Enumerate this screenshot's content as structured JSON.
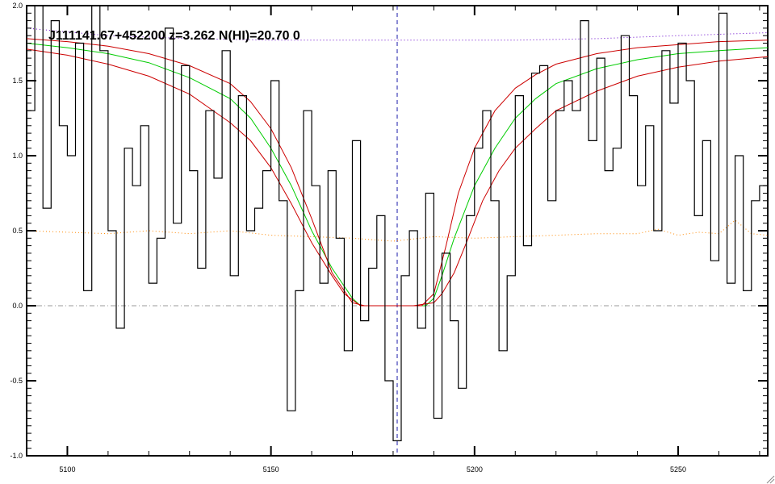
{
  "chart_data": {
    "type": "line",
    "title": "J111141.67+452200 z=3.262 N(HI)=20.70 0",
    "xlabel": "",
    "ylabel": "",
    "xlim": [
      5090,
      5272
    ],
    "ylim": [
      -1.0,
      2.0
    ],
    "x_ticks": [
      5100,
      5150,
      5200,
      5250
    ],
    "y_ticks": [
      -1.0,
      -0.5,
      0.0,
      0.5,
      1.0,
      1.5,
      2.0
    ],
    "y_tick_labels": [
      "-1.0",
      "-0.5",
      "0.0",
      "0.5",
      "1.0",
      "1.5",
      "2.0"
    ],
    "grid": false,
    "center_x": 5181,
    "zero_level": 0.0,
    "series": [
      {
        "style": "step",
        "color": "#000000",
        "x": [
          5090,
          5092,
          5094,
          5096,
          5098,
          5100,
          5102,
          5104,
          5106,
          5108,
          5110,
          5112,
          5114,
          5116,
          5118,
          5120,
          5122,
          5124,
          5126,
          5128,
          5130,
          5132,
          5134,
          5136,
          5138,
          5140,
          5142,
          5144,
          5146,
          5148,
          5150,
          5152,
          5154,
          5156,
          5158,
          5160,
          5162,
          5164,
          5166,
          5168,
          5170,
          5172,
          5174,
          5176,
          5178,
          5180,
          5182,
          5184,
          5186,
          5188,
          5190,
          5192,
          5194,
          5196,
          5198,
          5200,
          5202,
          5204,
          5206,
          5208,
          5210,
          5212,
          5214,
          5216,
          5218,
          5220,
          5222,
          5224,
          5226,
          5228,
          5230,
          5232,
          5234,
          5236,
          5238,
          5240,
          5242,
          5244,
          5246,
          5248,
          5250,
          5252,
          5254,
          5256,
          5258,
          5260,
          5262,
          5264,
          5266,
          5268,
          5270
        ],
        "values": [
          1.3,
          2.0,
          0.65,
          1.9,
          1.2,
          1.0,
          1.75,
          0.1,
          2.1,
          1.7,
          0.5,
          -0.15,
          1.05,
          0.8,
          1.2,
          0.15,
          0.45,
          1.85,
          0.55,
          1.6,
          0.9,
          0.25,
          1.3,
          0.85,
          1.7,
          0.2,
          1.4,
          0.5,
          0.65,
          0.9,
          1.5,
          0.7,
          -0.7,
          0.1,
          1.3,
          0.8,
          0.15,
          0.9,
          0.45,
          -0.3,
          1.1,
          -0.1,
          0.25,
          0.6,
          -0.5,
          -0.9,
          0.2,
          0.5,
          -0.15,
          0.75,
          -0.75,
          0.35,
          -0.1,
          -0.55,
          0.6,
          1.05,
          1.3,
          0.7,
          -0.3,
          0.2,
          1.4,
          0.4,
          1.55,
          1.6,
          0.7,
          1.3,
          1.5,
          1.3,
          1.9,
          1.1,
          1.65,
          0.9,
          1.05,
          1.8,
          1.4,
          0.8,
          1.2,
          0.5,
          1.7,
          1.35,
          1.75,
          1.5,
          0.6,
          1.1,
          0.3,
          1.95,
          0.15,
          1.0,
          0.1,
          0.7,
          0.8
        ]
      },
      {
        "style": "line",
        "color": "#00cc00",
        "x": [
          5090,
          5100,
          5110,
          5120,
          5130,
          5140,
          5145,
          5150,
          5155,
          5160,
          5165,
          5170,
          5172,
          5175,
          5180,
          5185,
          5188,
          5190,
          5192,
          5195,
          5200,
          5205,
          5210,
          5215,
          5220,
          5230,
          5240,
          5250,
          5260,
          5272
        ],
        "values": [
          1.75,
          1.72,
          1.68,
          1.62,
          1.52,
          1.38,
          1.25,
          1.05,
          0.8,
          0.5,
          0.25,
          0.05,
          0.0,
          0.0,
          0.0,
          0.0,
          0.0,
          0.05,
          0.2,
          0.45,
          0.8,
          1.05,
          1.25,
          1.38,
          1.48,
          1.58,
          1.64,
          1.68,
          1.7,
          1.72
        ]
      },
      {
        "style": "line",
        "color": "#cc0000",
        "x": [
          5090,
          5100,
          5110,
          5120,
          5130,
          5140,
          5145,
          5150,
          5155,
          5160,
          5165,
          5170,
          5173,
          5175,
          5180,
          5185,
          5187,
          5190,
          5193,
          5196,
          5200,
          5205,
          5210,
          5215,
          5220,
          5230,
          5240,
          5250,
          5260,
          5272
        ],
        "values": [
          1.78,
          1.76,
          1.73,
          1.68,
          1.6,
          1.48,
          1.36,
          1.18,
          0.92,
          0.58,
          0.22,
          0.02,
          0.0,
          0.0,
          0.0,
          0.0,
          0.0,
          0.08,
          0.4,
          0.75,
          1.05,
          1.3,
          1.45,
          1.54,
          1.61,
          1.68,
          1.72,
          1.74,
          1.76,
          1.77
        ]
      },
      {
        "style": "line",
        "color": "#cc0000",
        "x": [
          5090,
          5100,
          5110,
          5120,
          5130,
          5140,
          5145,
          5150,
          5155,
          5160,
          5165,
          5168,
          5172,
          5175,
          5180,
          5185,
          5190,
          5192,
          5195,
          5198,
          5202,
          5206,
          5210,
          5215,
          5220,
          5230,
          5240,
          5250,
          5260,
          5272
        ],
        "values": [
          1.71,
          1.67,
          1.61,
          1.53,
          1.41,
          1.22,
          1.1,
          0.92,
          0.68,
          0.42,
          0.2,
          0.08,
          0.0,
          0.0,
          0.0,
          0.0,
          0.02,
          0.08,
          0.22,
          0.42,
          0.7,
          0.9,
          1.05,
          1.18,
          1.3,
          1.43,
          1.53,
          1.59,
          1.63,
          1.66
        ]
      },
      {
        "style": "dotted",
        "color": "#ff8800",
        "x": [
          5090,
          5100,
          5110,
          5120,
          5130,
          5140,
          5150,
          5160,
          5170,
          5180,
          5190,
          5200,
          5210,
          5220,
          5230,
          5240,
          5245,
          5250,
          5255,
          5260,
          5264,
          5268,
          5272
        ],
        "values": [
          0.5,
          0.49,
          0.48,
          0.5,
          0.48,
          0.5,
          0.47,
          0.46,
          0.45,
          0.43,
          0.46,
          0.45,
          0.46,
          0.47,
          0.48,
          0.48,
          0.51,
          0.47,
          0.49,
          0.48,
          0.57,
          0.48,
          0.47
        ]
      },
      {
        "style": "dotted",
        "color": "#6600cc",
        "x": [
          5090,
          5110,
          5130,
          5150,
          5170,
          5190,
          5210,
          5230,
          5250,
          5272
        ],
        "values": [
          1.85,
          1.8,
          1.78,
          1.77,
          1.77,
          1.77,
          1.77,
          1.78,
          1.8,
          1.82
        ]
      }
    ]
  }
}
